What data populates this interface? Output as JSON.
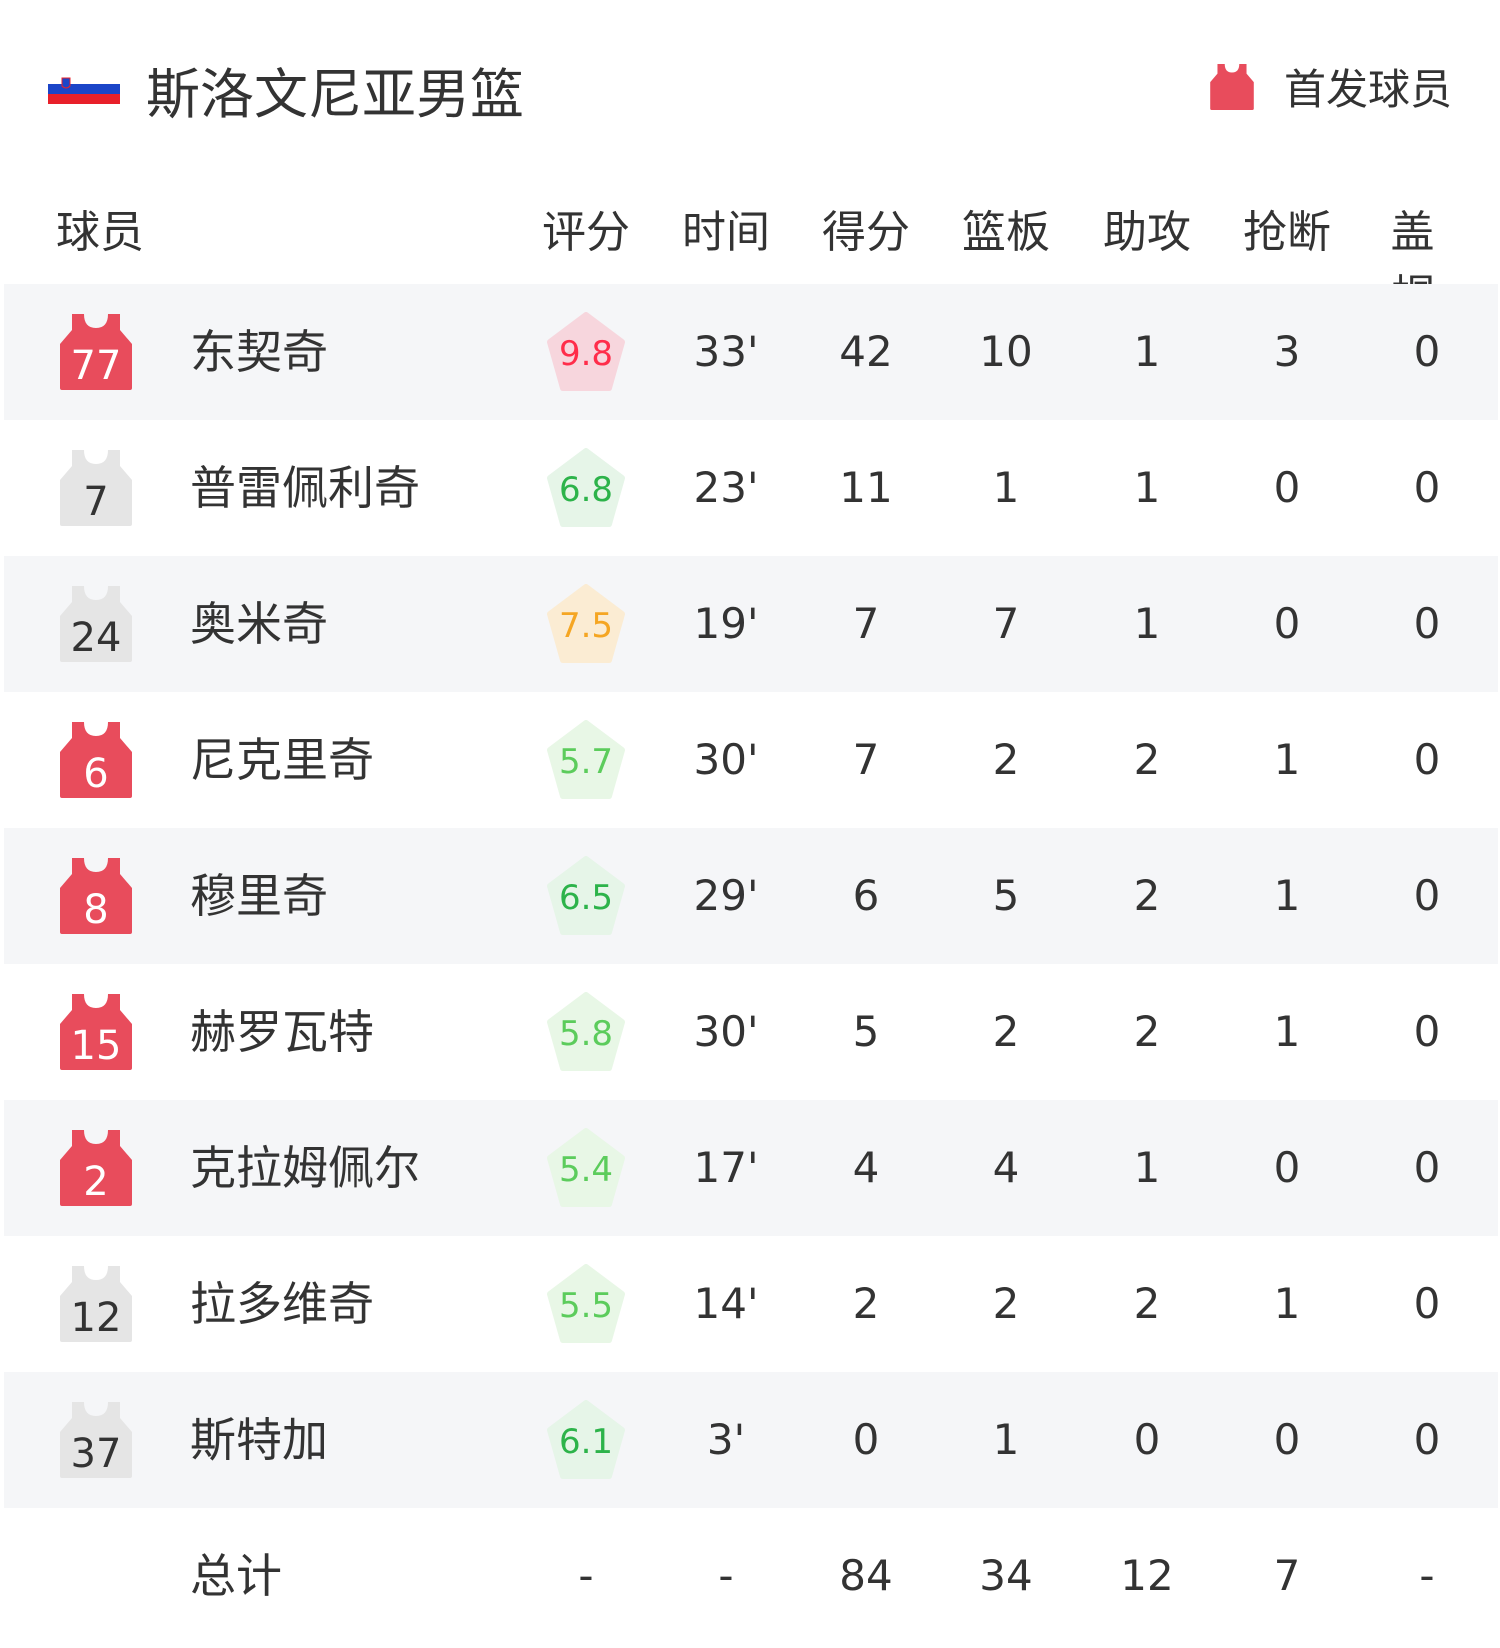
{
  "header": {
    "title": "斯洛文尼亚男篮",
    "legend_label": "首发球员",
    "flag_icon": "slovenia-flag",
    "legend_icon": "jersey-icon"
  },
  "columns": [
    "球员",
    "评分",
    "时间",
    "得分",
    "篮板",
    "助攻",
    "抢断",
    "盖帽"
  ],
  "colors": {
    "starter": "#e84c5c",
    "bench": "#e5e5e5",
    "row_alt": "#f5f6f8"
  },
  "players": [
    {
      "number": "77",
      "name": "东契奇",
      "starter": true,
      "rating": "9.8",
      "rating_level": "red",
      "time": "33'",
      "pts": "42",
      "reb": "10",
      "ast": "1",
      "stl": "3",
      "blk": "0"
    },
    {
      "number": "7",
      "name": "普雷佩利奇",
      "starter": false,
      "rating": "6.8",
      "rating_level": "green",
      "time": "23'",
      "pts": "11",
      "reb": "1",
      "ast": "1",
      "stl": "0",
      "blk": "0"
    },
    {
      "number": "24",
      "name": "奥米奇",
      "starter": false,
      "rating": "7.5",
      "rating_level": "orange",
      "time": "19'",
      "pts": "7",
      "reb": "7",
      "ast": "1",
      "stl": "0",
      "blk": "0"
    },
    {
      "number": "6",
      "name": "尼克里奇",
      "starter": true,
      "rating": "5.7",
      "rating_level": "lightgreen",
      "time": "30'",
      "pts": "7",
      "reb": "2",
      "ast": "2",
      "stl": "1",
      "blk": "0"
    },
    {
      "number": "8",
      "name": "穆里奇",
      "starter": true,
      "rating": "6.5",
      "rating_level": "green",
      "time": "29'",
      "pts": "6",
      "reb": "5",
      "ast": "2",
      "stl": "1",
      "blk": "0"
    },
    {
      "number": "15",
      "name": "赫罗瓦特",
      "starter": true,
      "rating": "5.8",
      "rating_level": "lightgreen",
      "time": "30'",
      "pts": "5",
      "reb": "2",
      "ast": "2",
      "stl": "1",
      "blk": "0"
    },
    {
      "number": "2",
      "name": "克拉姆佩尔",
      "starter": true,
      "rating": "5.4",
      "rating_level": "lightgreen",
      "time": "17'",
      "pts": "4",
      "reb": "4",
      "ast": "1",
      "stl": "0",
      "blk": "0"
    },
    {
      "number": "12",
      "name": "拉多维奇",
      "starter": false,
      "rating": "5.5",
      "rating_level": "lightgreen",
      "time": "14'",
      "pts": "2",
      "reb": "2",
      "ast": "2",
      "stl": "1",
      "blk": "0"
    },
    {
      "number": "37",
      "name": "斯特加",
      "starter": false,
      "rating": "6.1",
      "rating_level": "green",
      "time": "3'",
      "pts": "0",
      "reb": "1",
      "ast": "0",
      "stl": "0",
      "blk": "0"
    }
  ],
  "totals": {
    "label": "总计",
    "rating": "-",
    "time": "-",
    "pts": "84",
    "reb": "34",
    "ast": "12",
    "stl": "7",
    "blk": "-"
  }
}
